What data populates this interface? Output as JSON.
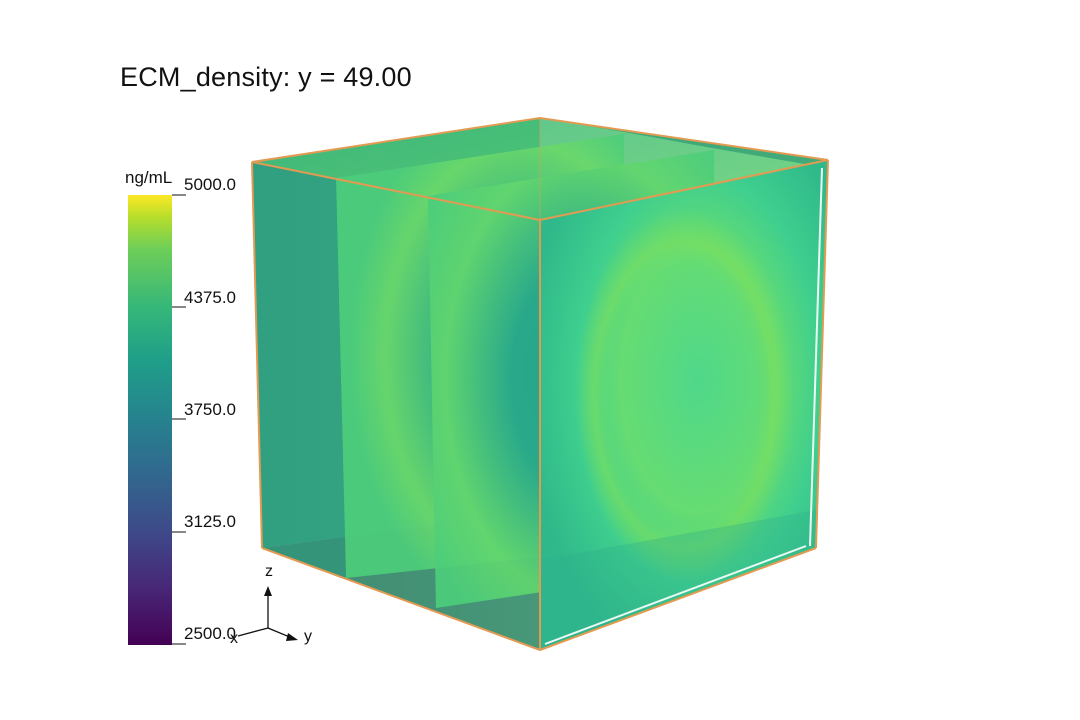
{
  "title": "ECM_density: y = 49.00",
  "colorbar": {
    "units": "ng/mL",
    "ticks": [
      "5000.0",
      "4375.0",
      "3750.0",
      "3125.0",
      "2500.0"
    ],
    "range": [
      2500,
      5000
    ],
    "colormap": "viridis"
  },
  "axes_triad": {
    "z": "z",
    "y": "y",
    "x": "x"
  },
  "colors": {
    "outline": "#e39a52",
    "face_base": "#3fcf8e",
    "face_hot": "#7fe05a",
    "face_cool": "#26a38a"
  }
}
